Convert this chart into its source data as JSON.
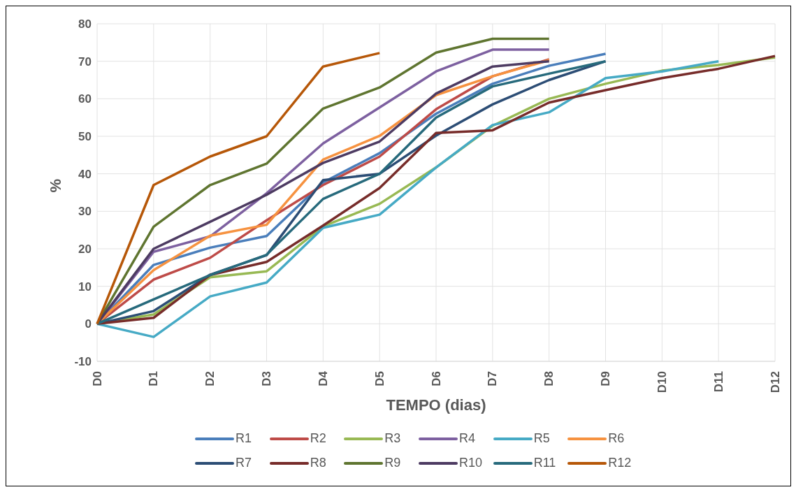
{
  "chart_data": {
    "type": "line",
    "xlabel": "TEMPO (dias)",
    "ylabel": "%",
    "categories": [
      "D0",
      "D1",
      "D2",
      "D3",
      "D4",
      "D5",
      "D6",
      "D7",
      "D8",
      "D9",
      "D10",
      "D11",
      "D12"
    ],
    "ylim": [
      -10,
      80
    ],
    "yticks": [
      -10,
      0,
      10,
      20,
      30,
      40,
      50,
      60,
      70,
      80
    ],
    "grid": true,
    "legend": "bottom",
    "marker": "none",
    "line_style": "solid",
    "series": [
      {
        "name": "R1",
        "color": "#4a7ebb",
        "values": [
          0,
          15.7,
          20.3,
          23.4,
          37.7,
          45.5,
          56,
          64,
          68.8,
          72,
          null,
          null,
          null
        ]
      },
      {
        "name": "R2",
        "color": "#be4b48",
        "values": [
          0,
          11.8,
          17.6,
          27.6,
          37,
          44.6,
          57.2,
          66,
          70.5,
          null,
          null,
          null,
          null
        ]
      },
      {
        "name": "R3",
        "color": "#98b954",
        "values": [
          0,
          2.5,
          12.4,
          14,
          26,
          32,
          41.7,
          52.8,
          60,
          64,
          67.5,
          69,
          71
        ]
      },
      {
        "name": "R4",
        "color": "#7d60a0",
        "values": [
          0,
          19.2,
          23.3,
          34.8,
          48.1,
          57.7,
          67.3,
          73.1,
          73.1,
          null,
          null,
          null,
          null
        ]
      },
      {
        "name": "R5",
        "color": "#46aac5",
        "values": [
          0,
          -3.5,
          7.3,
          11,
          25.6,
          29.1,
          41.7,
          53,
          56.4,
          65.5,
          67.3,
          70,
          null
        ]
      },
      {
        "name": "R6",
        "color": "#f69240",
        "values": [
          0,
          14.3,
          23.5,
          26.4,
          43.8,
          50.1,
          61,
          66,
          70.3,
          null,
          null,
          null,
          null
        ]
      },
      {
        "name": "R7",
        "color": "#2c4d75",
        "values": [
          0,
          3.4,
          13.1,
          18.3,
          38.3,
          40,
          50.2,
          58.5,
          65,
          70,
          null,
          null,
          null
        ]
      },
      {
        "name": "R8",
        "color": "#772c2a",
        "values": [
          0,
          1.6,
          13,
          16.5,
          26.2,
          36.2,
          50.9,
          51.6,
          59,
          62.3,
          65.5,
          68,
          71.4
        ]
      },
      {
        "name": "R9",
        "color": "#5f7530",
        "values": [
          0,
          25.9,
          37,
          42.7,
          57.4,
          63,
          72.3,
          76,
          76,
          null,
          null,
          null,
          null
        ]
      },
      {
        "name": "R10",
        "color": "#4d3b62",
        "values": [
          0,
          20,
          27.2,
          34.4,
          42.9,
          48.6,
          61.4,
          68.6,
          70,
          null,
          null,
          null,
          null
        ]
      },
      {
        "name": "R11",
        "color": "#276a7c",
        "values": [
          0,
          6.5,
          13,
          18.4,
          33.3,
          40,
          55,
          63.3,
          66.7,
          70,
          null,
          null,
          null
        ]
      },
      {
        "name": "R12",
        "color": "#b65708",
        "values": [
          0,
          37,
          44.6,
          50,
          68.6,
          72.2,
          null,
          null,
          null,
          null,
          null,
          null,
          null
        ]
      }
    ]
  }
}
